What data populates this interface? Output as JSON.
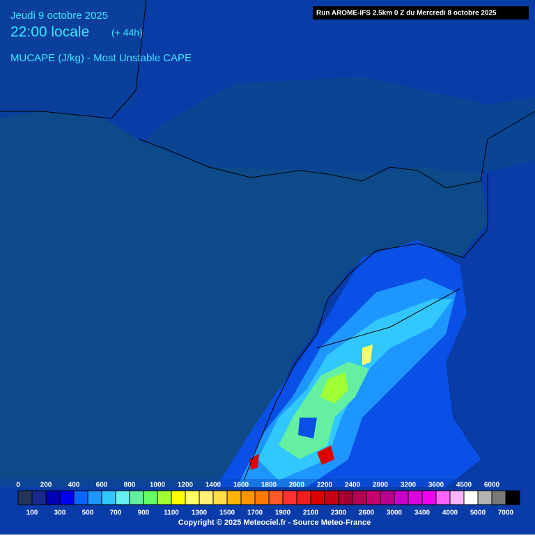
{
  "header": {
    "date": "Jeudi 9 octobre 2025",
    "time": "22:00 locale",
    "lead": "(+ 44h)",
    "parameter": "MUCAPE (J/kg) - Most Unstable CAPE",
    "run": "Run AROME-IFS 2.5km 0 Z du Mercredi 8 octobre 2025"
  },
  "legend": {
    "top_labels": [
      "0",
      "200",
      "400",
      "600",
      "800",
      "1000",
      "1200",
      "1400",
      "1600",
      "1800",
      "2000",
      "2200",
      "2400",
      "2800",
      "3200",
      "3600",
      "4500",
      "6000"
    ],
    "bottom_labels": [
      "100",
      "300",
      "500",
      "700",
      "900",
      "1100",
      "1300",
      "1500",
      "1700",
      "1900",
      "2100",
      "2300",
      "2600",
      "3000",
      "3400",
      "4000",
      "5000",
      "7000"
    ],
    "colors": [
      "#243458",
      "#1a2a8c",
      "#0000b4",
      "#0000f0",
      "#0a64ff",
      "#1e96ff",
      "#32c8ff",
      "#64f0f0",
      "#64f0a0",
      "#64ff64",
      "#a0ff32",
      "#ffff00",
      "#ffff64",
      "#fff078",
      "#ffdc46",
      "#ffb400",
      "#ff9600",
      "#ff7800",
      "#ff5a28",
      "#ff3232",
      "#f01e1e",
      "#dc0000",
      "#c80014",
      "#a00032",
      "#b40050",
      "#c8006e",
      "#b4008c",
      "#c800c8",
      "#dc00dc",
      "#f000f0",
      "#ff64ff",
      "#ffb4ff",
      "#ffffff",
      "#b4b4b4",
      "#787878",
      "#000000"
    ]
  },
  "footer": {
    "copyright": "Copyright © 2025 Meteociel.fr - Source Meteo-France"
  }
}
